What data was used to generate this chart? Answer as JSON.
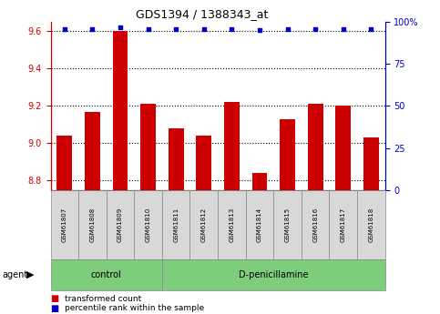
{
  "title": "GDS1394 / 1388343_at",
  "samples": [
    "GSM61807",
    "GSM61808",
    "GSM61809",
    "GSM61810",
    "GSM61811",
    "GSM61812",
    "GSM61813",
    "GSM61814",
    "GSM61815",
    "GSM61816",
    "GSM61817",
    "GSM61818"
  ],
  "transformed_count": [
    9.04,
    9.17,
    9.6,
    9.21,
    9.08,
    9.04,
    9.22,
    8.84,
    9.13,
    9.21,
    9.2,
    9.03
  ],
  "percentile_rank": [
    96,
    96,
    97,
    96,
    96,
    96,
    96,
    95,
    96,
    96,
    96,
    96
  ],
  "ylim_left": [
    8.75,
    9.65
  ],
  "ylim_right": [
    0,
    100
  ],
  "y_ticks_left": [
    8.8,
    9.0,
    9.2,
    9.4,
    9.6
  ],
  "y_ticks_right": [
    0,
    25,
    50,
    75,
    100
  ],
  "bar_color": "#cc0000",
  "dot_color": "#0000cc",
  "bar_bottom": 8.75,
  "control_count": 4,
  "control_label": "control",
  "treatment_label": "D-penicillamine",
  "agent_label": "agent",
  "legend_bar_label": "transformed count",
  "legend_dot_label": "percentile rank within the sample",
  "right_axis_color": "#0000cc",
  "left_axis_color": "#cc0000",
  "grid_color": "black"
}
